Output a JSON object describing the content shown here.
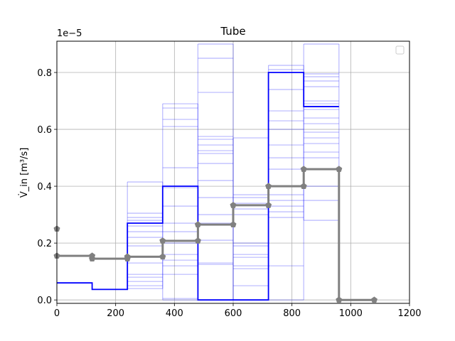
{
  "chart_data": {
    "type": "line",
    "title": "Tube",
    "ylabel": "V̇_in [m³/s]",
    "xlabel": "",
    "y_offset_text": "1e−5",
    "xlim": [
      0,
      1200
    ],
    "ylim": [
      -0.012,
      0.91
    ],
    "y_scale_factor": "1e-5",
    "grid": true,
    "legend": "top-right (empty)",
    "x_ticks": [
      0,
      200,
      400,
      600,
      800,
      1000,
      1200
    ],
    "y_ticks": [
      0.0,
      0.2,
      0.4,
      0.6,
      0.8
    ],
    "x_tick_labels": [
      "0",
      "200",
      "400",
      "600",
      "800",
      "1000",
      "1200"
    ],
    "y_tick_labels": [
      "0.0",
      "0.2",
      "0.4",
      "0.6",
      "0.8"
    ],
    "colors": {
      "main_step": "#0000ff",
      "faint_steps": "#0000ff",
      "mean_line": "#808080"
    },
    "main_step": {
      "x": [
        0,
        120,
        120,
        240,
        240,
        360,
        360,
        480,
        480,
        600,
        600,
        720,
        720,
        840,
        840,
        960
      ],
      "y": [
        0.06,
        0.06,
        0.037,
        0.037,
        0.27,
        0.27,
        0.4,
        0.4,
        0.0,
        0.0,
        0.0,
        0.0,
        0.8,
        0.8,
        0.68,
        0.68
      ]
    },
    "faint_segments": [
      {
        "x0": 240,
        "x1": 360,
        "levels": [
          0.415,
          0.305,
          0.29,
          0.28,
          0.26,
          0.24,
          0.22,
          0.19,
          0.15,
          0.13,
          0.09,
          0.08,
          0.065,
          0.05,
          0.04
        ]
      },
      {
        "x0": 360,
        "x1": 480,
        "levels": [
          0.69,
          0.675,
          0.635,
          0.61,
          0.465,
          0.395,
          0.33,
          0.27,
          0.24,
          0.2,
          0.16,
          0.14,
          0.12,
          0.09,
          0.005,
          0.0
        ]
      },
      {
        "x0": 480,
        "x1": 600,
        "levels": [
          0.9,
          0.85,
          0.73,
          0.575,
          0.565,
          0.545,
          0.525,
          0.515,
          0.48,
          0.42,
          0.36,
          0.3,
          0.27,
          0.21,
          0.13,
          0.125,
          0.0
        ]
      },
      {
        "x0": 600,
        "x1": 720,
        "levels": [
          0.57,
          0.37,
          0.36,
          0.34,
          0.32,
          0.3,
          0.2,
          0.19,
          0.16,
          0.15,
          0.12,
          0.11,
          0.05,
          0.0
        ]
      },
      {
        "x0": 720,
        "x1": 840,
        "levels": [
          0.825,
          0.81,
          0.74,
          0.665,
          0.63,
          0.6,
          0.545,
          0.5,
          0.46,
          0.37,
          0.35,
          0.33,
          0.31,
          0.29,
          0.12,
          0.0
        ]
      },
      {
        "x0": 840,
        "x1": 960,
        "levels": [
          0.9,
          0.795,
          0.785,
          0.77,
          0.75,
          0.7,
          0.69,
          0.67,
          0.64,
          0.62,
          0.59,
          0.57,
          0.55,
          0.52,
          0.5,
          0.4,
          0.35,
          0.28
        ]
      }
    ],
    "series": [
      {
        "type": "step",
        "x": [
          0,
          120,
          120,
          240,
          240,
          360,
          360,
          480,
          480,
          600,
          600,
          720,
          720,
          840,
          840,
          960,
          960,
          1080
        ],
        "y": [
          0.155,
          0.155,
          0.145,
          0.145,
          0.152,
          0.152,
          0.208,
          0.208,
          0.265,
          0.265,
          0.333,
          0.333,
          0.4,
          0.4,
          0.46,
          0.46,
          0.0,
          0.0
        ]
      }
    ],
    "markers": {
      "x": [
        0,
        0,
        120,
        120,
        240,
        240,
        360,
        360,
        480,
        480,
        600,
        600,
        720,
        720,
        840,
        840,
        960,
        960,
        1080
      ],
      "y": [
        0.25,
        0.155,
        0.155,
        0.145,
        0.145,
        0.152,
        0.152,
        0.208,
        0.208,
        0.265,
        0.265,
        0.333,
        0.333,
        0.4,
        0.4,
        0.46,
        0.46,
        0.0,
        0.0
      ]
    }
  }
}
